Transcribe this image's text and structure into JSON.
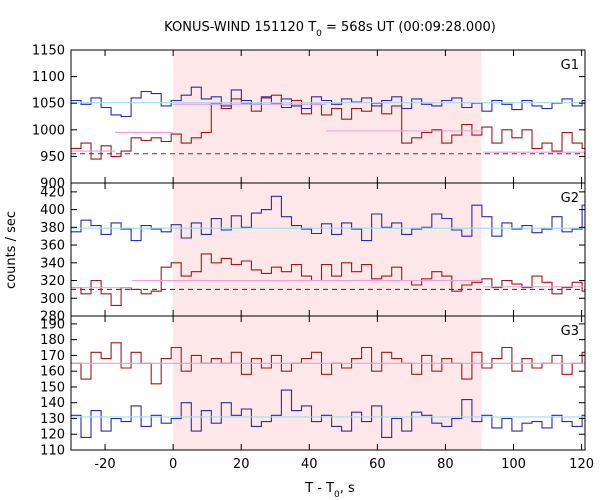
{
  "chart_data": {
    "type": "line",
    "title": {
      "main": "KONUS-WIND 151120 T",
      "sub": "0",
      "rest": " = 568s UT (00:09:28.000)"
    },
    "xlabel": {
      "main": "T - T",
      "sub": "0",
      "rest": ", s"
    },
    "ylabel": "counts / sec",
    "xlim": [
      -30,
      121
    ],
    "x_ticks": [
      -20,
      0,
      20,
      40,
      60,
      80,
      100,
      120
    ],
    "shaded_interval": [
      0,
      90.6
    ],
    "shade_color": "#fde7e8",
    "bin_width": 2.944,
    "x_start": -30,
    "panels": [
      {
        "label": "G1",
        "ylim": [
          900,
          1150
        ],
        "y_ticks": [
          900,
          950,
          1000,
          1050,
          1100,
          1150
        ],
        "series": [
          {
            "color": "#2b2bb0",
            "style": "step",
            "values": [
              1055,
              1048,
              1060,
              1042,
              1028,
              1025,
              1060,
              1072,
              1068,
              1045,
              1055,
              1065,
              1080,
              1058,
              1062,
              1045,
              1075,
              1055,
              1048,
              1062,
              1050,
              1058,
              1045,
              1040,
              1062,
              1055,
              1048,
              1058,
              1052,
              1060,
              1045,
              1055,
              1062,
              1040,
              1058,
              1048,
              1045,
              1055,
              1060,
              1042,
              1050,
              1035,
              1055,
              1048,
              1038,
              1055,
              1045,
              1040,
              1050,
              1058,
              1045,
              1055,
              1040,
              1052
            ]
          },
          {
            "color": "#a01a1a",
            "style": "step",
            "values": [
              965,
              975,
              945,
              970,
              950,
              960,
              985,
              980,
              985,
              978,
              992,
              975,
              985,
              995,
              1050,
              1040,
              1058,
              1050,
              1035,
              1060,
              1065,
              1042,
              1055,
              1030,
              1048,
              1028,
              1040,
              1020,
              1040,
              1035,
              1050,
              1030,
              1045,
              975,
              985,
              995,
              1000,
              975,
              990,
              1010,
              990,
              1005,
              975,
              1000,
              985,
              1000,
              965,
              975,
              960,
              995,
              975,
              965,
              990,
              985,
              955,
              945,
              975,
              950,
              980,
              985,
              950,
              970,
              975,
              940,
              960,
              1000,
              965,
              1005,
              980,
              955,
              985,
              965
            ]
          },
          {
            "color": "#9fdbf0",
            "style": "hline",
            "segments": [
              [
                -30,
                121,
                1051
              ]
            ]
          },
          {
            "color": "#ee9edb",
            "style": "hline",
            "segments": [
              [
                -30,
                -17,
                960
              ],
              [
                -17,
                0,
                995
              ],
              [
                0,
                45,
                1048
              ],
              [
                45,
                91,
                998
              ],
              [
                91,
                121,
                958
              ]
            ]
          },
          {
            "color": "#a01a1a",
            "style": "dashed",
            "segments": [
              [
                -30,
                121,
                955
              ]
            ]
          }
        ]
      },
      {
        "label": "G2",
        "ylim": [
          280,
          430
        ],
        "y_ticks": [
          280,
          300,
          320,
          340,
          360,
          380,
          400,
          420
        ],
        "series": [
          {
            "color": "#2b2bb0",
            "style": "step",
            "values": [
              375,
              388,
              382,
              372,
              385,
              378,
              365,
              382,
              378,
              375,
              383,
              368,
              385,
              372,
              390,
              377,
              393,
              380,
              396,
              400,
              415,
              392,
              382,
              378,
              373,
              384,
              372,
              385,
              378,
              365,
              395,
              380,
              385,
              372,
              378,
              380,
              395,
              390,
              377,
              370,
              405,
              392,
              370,
              385,
              378,
              382,
              374,
              378,
              392,
              375,
              378,
              405,
              380,
              388,
              382,
              378,
              396,
              392,
              380,
              408,
              374,
              380,
              385,
              378,
              372,
              380,
              383,
              370,
              385,
              378,
              372,
              380
            ]
          },
          {
            "color": "#a01a1a",
            "style": "step",
            "values": [
              312,
              305,
              320,
              305,
              292,
              312,
              310,
              305,
              308,
              335,
              340,
              325,
              330,
              350,
              340,
              345,
              338,
              342,
              332,
              328,
              335,
              330,
              338,
              325,
              320,
              338,
              325,
              340,
              330,
              338,
              322,
              325,
              335,
              320,
              315,
              322,
              330,
              325,
              308,
              315,
              318,
              322,
              312,
              320,
              316,
              312,
              325,
              318,
              305,
              312,
              318,
              308,
              315,
              322,
              312,
              306,
              318,
              295,
              310,
              322,
              312,
              300,
              318,
              310,
              302,
              312,
              318,
              308,
              320,
              312,
              300,
              315
            ]
          },
          {
            "color": "#9fdbf0",
            "style": "hline",
            "segments": [
              [
                -30,
                121,
                379
              ]
            ]
          },
          {
            "color": "#ee9edb",
            "style": "hline",
            "segments": [
              [
                -30,
                -12,
                312
              ],
              [
                -12,
                91,
                320
              ],
              [
                91,
                121,
                313
              ]
            ]
          },
          {
            "color": "#a01a1a",
            "style": "dashed",
            "segments": [
              [
                -30,
                121,
                310
              ]
            ]
          }
        ]
      },
      {
        "label": "G3",
        "ylim": [
          110,
          195
        ],
        "y_ticks": [
          110,
          120,
          130,
          140,
          150,
          160,
          170,
          180,
          190
        ],
        "series": [
          {
            "color": "#2b2bb0",
            "style": "step",
            "values": [
              132,
              118,
              135,
              122,
              130,
              128,
              138,
              125,
              132,
              127,
              130,
              140,
              122,
              135,
              127,
              140,
              132,
              136,
              125,
              128,
              132,
              148,
              135,
              138,
              128,
              132,
              125,
              122,
              134,
              128,
              138,
              118,
              130,
              122,
              134,
              132,
              127,
              125,
              130,
              142,
              128,
              132,
              124,
              130,
              122,
              127,
              128,
              124,
              132,
              128,
              125,
              132,
              138,
              125,
              128,
              132,
              130,
              125,
              132,
              130,
              122,
              128,
              132,
              127,
              125,
              130,
              128,
              122,
              130,
              126,
              135,
              124,
              132,
              120,
              132,
              128
            ]
          },
          {
            "color": "#a01a1a",
            "style": "step",
            "values": [
              165,
              155,
              172,
              168,
              178,
              162,
              172,
              165,
              152,
              168,
              175,
              160,
              170,
              165,
              168,
              165,
              172,
              158,
              168,
              162,
              170,
              160,
              165,
              168,
              172,
              158,
              165,
              162,
              168,
              175,
              160,
              172,
              168,
              165,
              158,
              170,
              160,
              168,
              165,
              155,
              172,
              162,
              168,
              175,
              160,
              168,
              162,
              165,
              170,
              158,
              165,
              172,
              160,
              168,
              155,
              175,
              162,
              165,
              170,
              158,
              165,
              185,
              138,
              160,
              165,
              158,
              172,
              160,
              168,
              155,
              162,
              165,
              160,
              172,
              148,
              160
            ]
          },
          {
            "color": "#9fdbf0",
            "style": "hline",
            "segments": [
              [
                -30,
                121,
                131
              ]
            ]
          },
          {
            "color": "#ee9edb",
            "style": "hline",
            "segments": [
              [
                -30,
                121,
                165
              ]
            ]
          }
        ]
      }
    ]
  }
}
